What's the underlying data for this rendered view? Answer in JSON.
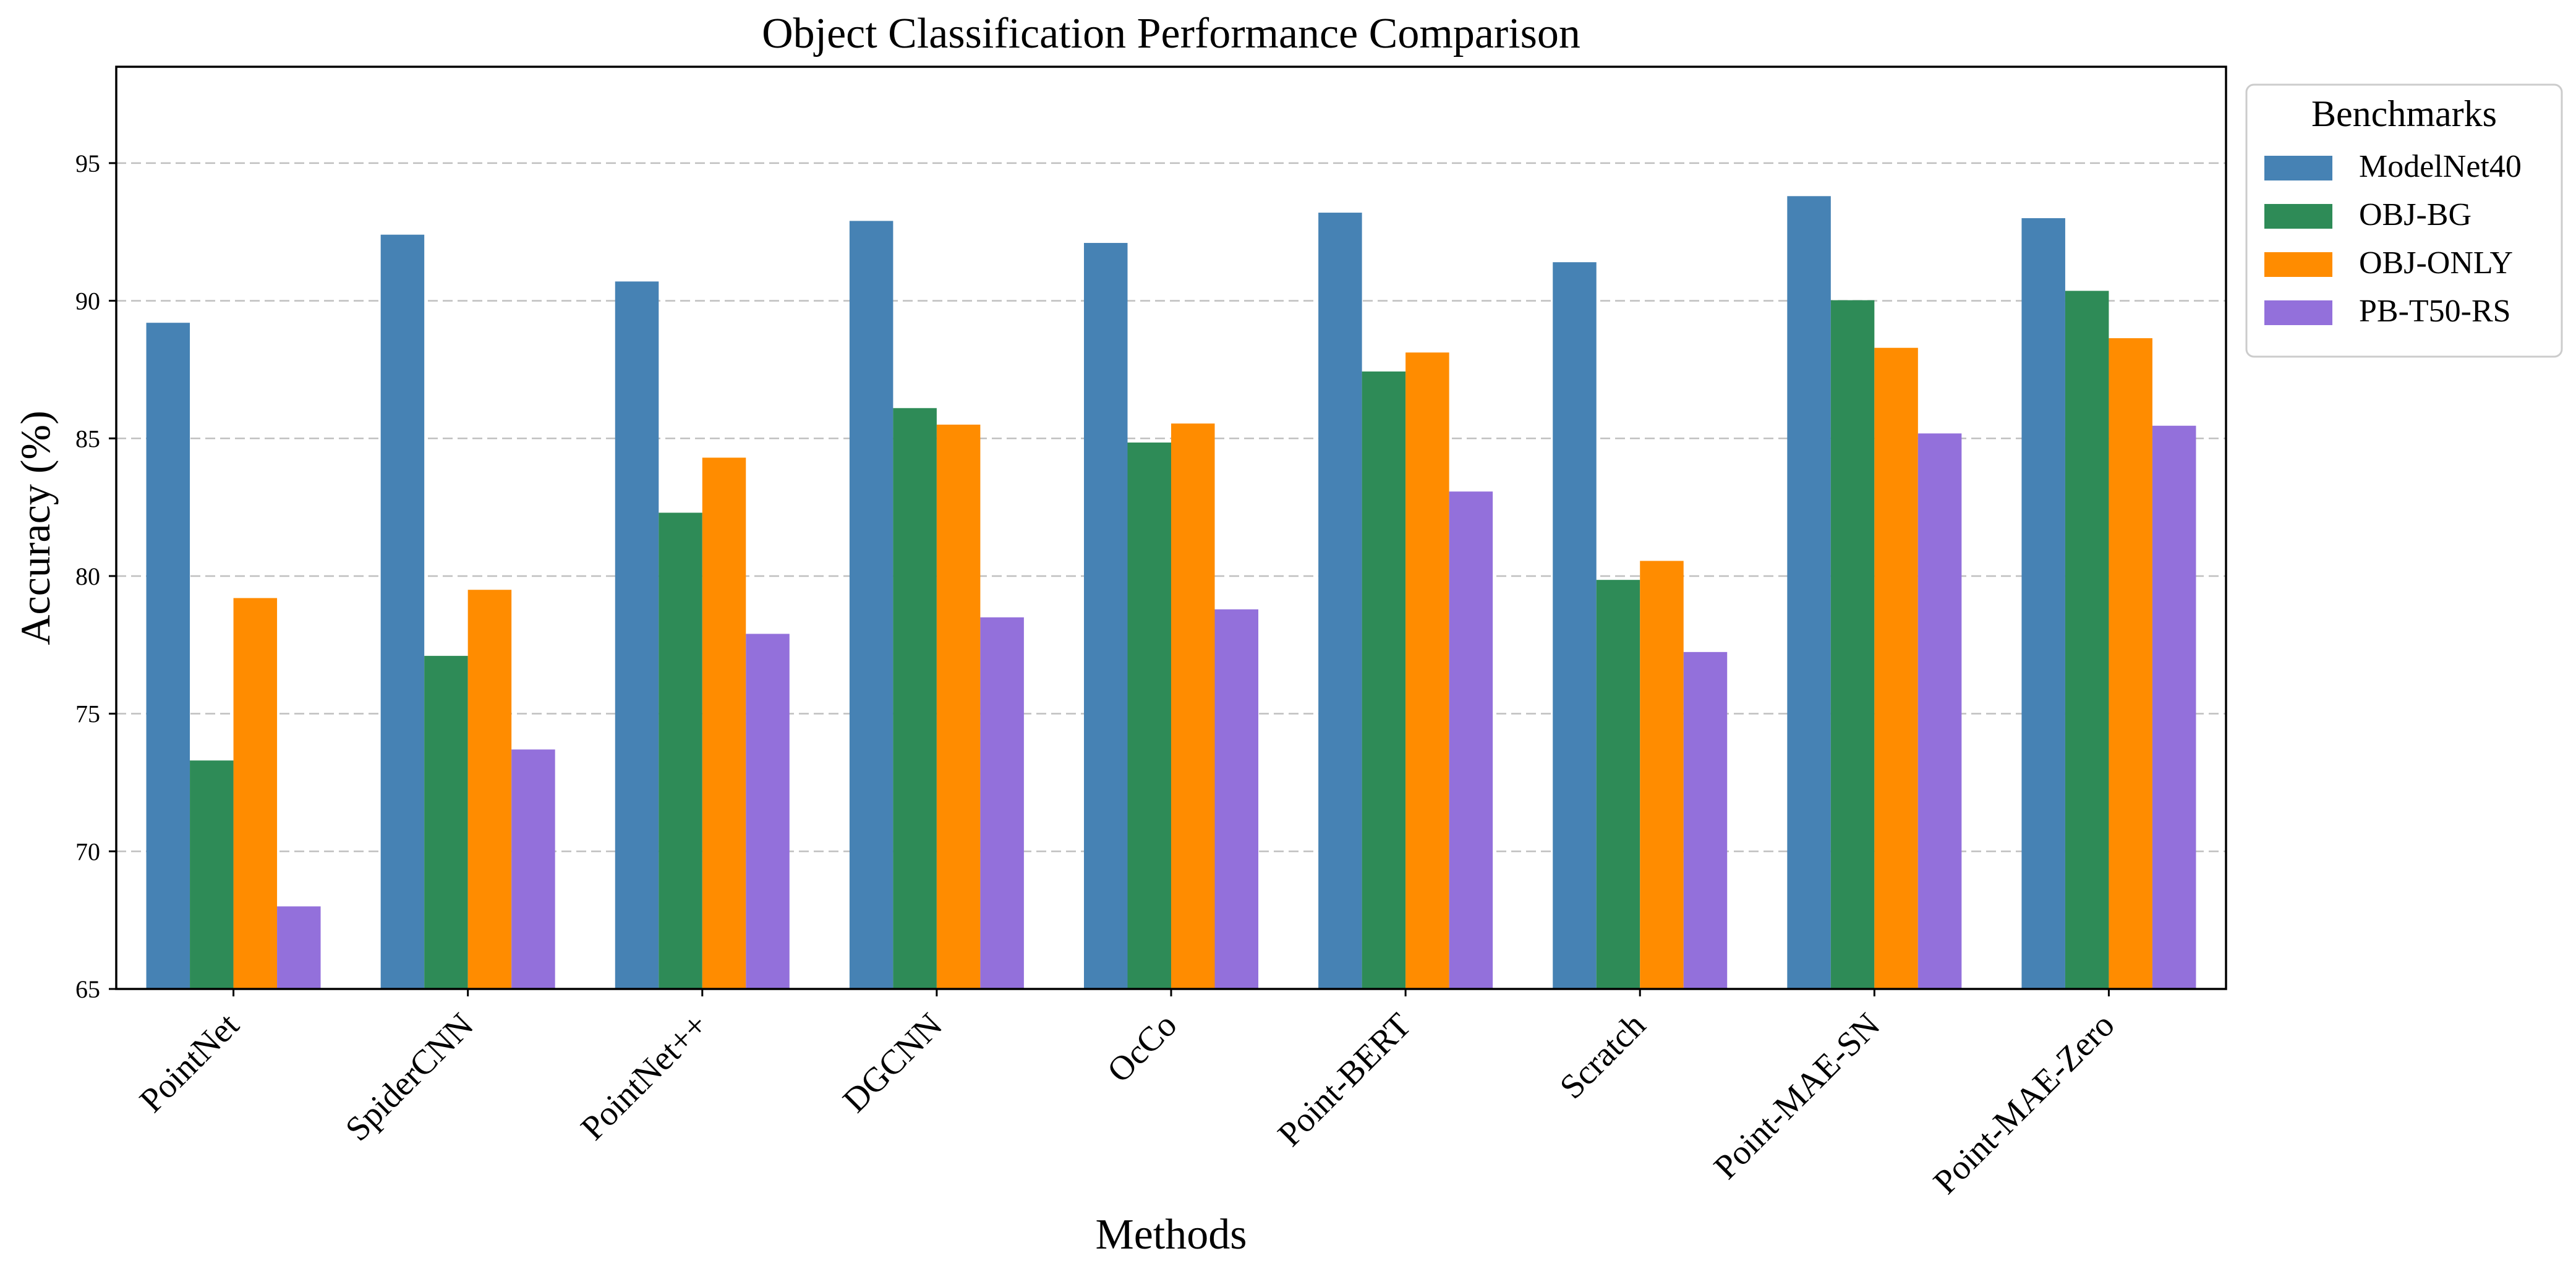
{
  "chart_data": {
    "type": "bar",
    "title": "Object Classification Performance Comparison",
    "xlabel": "Methods",
    "ylabel": "Accuracy (%)",
    "ylim": [
      65,
      98.5
    ],
    "yticks": [
      65,
      70,
      75,
      80,
      85,
      90,
      95
    ],
    "grid": "horizontal-dashed",
    "legend_title": "Benchmarks",
    "legend_position": "outside-top-right",
    "categories": [
      "PointNet",
      "SpiderCNN",
      "PointNet++",
      "DGCNN",
      "OcCo",
      "Point-BERT",
      "Scratch",
      "Point-MAE-SN",
      "Point-MAE-Zero"
    ],
    "series": [
      {
        "name": "ModelNet40",
        "color": "#4682b4",
        "values": [
          89.2,
          92.4,
          90.7,
          92.9,
          92.1,
          93.2,
          91.4,
          93.8,
          93.0
        ]
      },
      {
        "name": "OBJ-BG",
        "color": "#2e8b57",
        "values": [
          73.3,
          77.1,
          82.3,
          86.1,
          84.85,
          87.43,
          79.86,
          90.02,
          90.36
        ]
      },
      {
        "name": "OBJ-ONLY",
        "color": "#ff8c00",
        "values": [
          79.2,
          79.5,
          84.3,
          85.5,
          85.54,
          88.12,
          80.55,
          88.29,
          88.64
        ]
      },
      {
        "name": "PB-T50-RS",
        "color": "#9370db",
        "values": [
          68.0,
          73.7,
          77.9,
          78.5,
          78.79,
          83.07,
          77.24,
          85.18,
          85.46
        ]
      }
    ]
  }
}
